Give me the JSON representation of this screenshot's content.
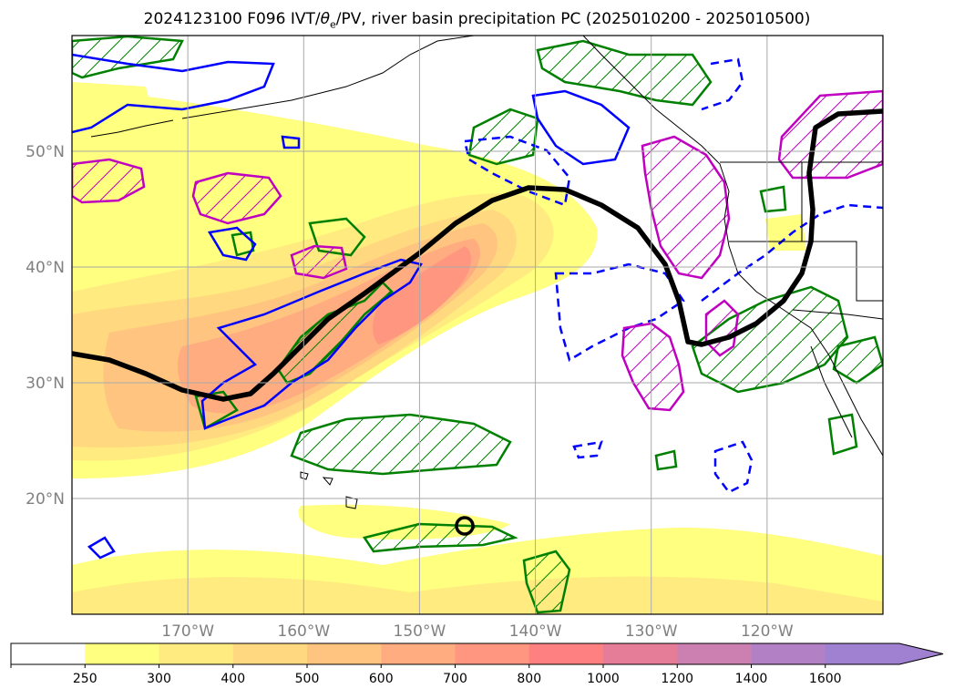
{
  "title": {
    "prefix": "2024123100 F096 IVT/",
    "theta": "θ",
    "theta_sub": "e",
    "suffix": "/PV, river basin precipitation PC (2025010200 - 2025010500)"
  },
  "map": {
    "projection": "lat-lon",
    "lat_range": [
      10,
      60
    ],
    "lon_range": [
      -180,
      -110
    ],
    "lat_ticks": [
      {
        "value": 20,
        "label": "20°N"
      },
      {
        "value": 30,
        "label": "30°N"
      },
      {
        "value": 40,
        "label": "40°N"
      },
      {
        "value": 50,
        "label": "50°N"
      }
    ],
    "lon_ticks": [
      {
        "value": -170,
        "label": "170°W"
      },
      {
        "value": -160,
        "label": "160°W"
      },
      {
        "value": -150,
        "label": "150°W"
      },
      {
        "value": -140,
        "label": "140°W"
      },
      {
        "value": -130,
        "label": "130°W"
      },
      {
        "value": -120,
        "label": "120°W"
      }
    ],
    "grid": true,
    "tick_label_color": "#808080"
  },
  "colorbar": {
    "levels": [
      "250",
      "300",
      "400",
      "500",
      "600",
      "700",
      "800",
      "1000",
      "1200",
      "1400",
      "1600"
    ],
    "colors": [
      "#ffffff",
      "#ffff80",
      "#ffeb80",
      "#ffd880",
      "#ffc580",
      "#ffad80",
      "#ff9780",
      "#ff8080",
      "#e57c98",
      "#cc80b2",
      "#b280c5",
      "#a080d0"
    ],
    "extend": "max"
  },
  "legend_colors": {
    "pv_line": "#000000",
    "green_contour": "#008000",
    "blue_contour": "#0000ff",
    "magenta_contour": "#c000c0"
  }
}
